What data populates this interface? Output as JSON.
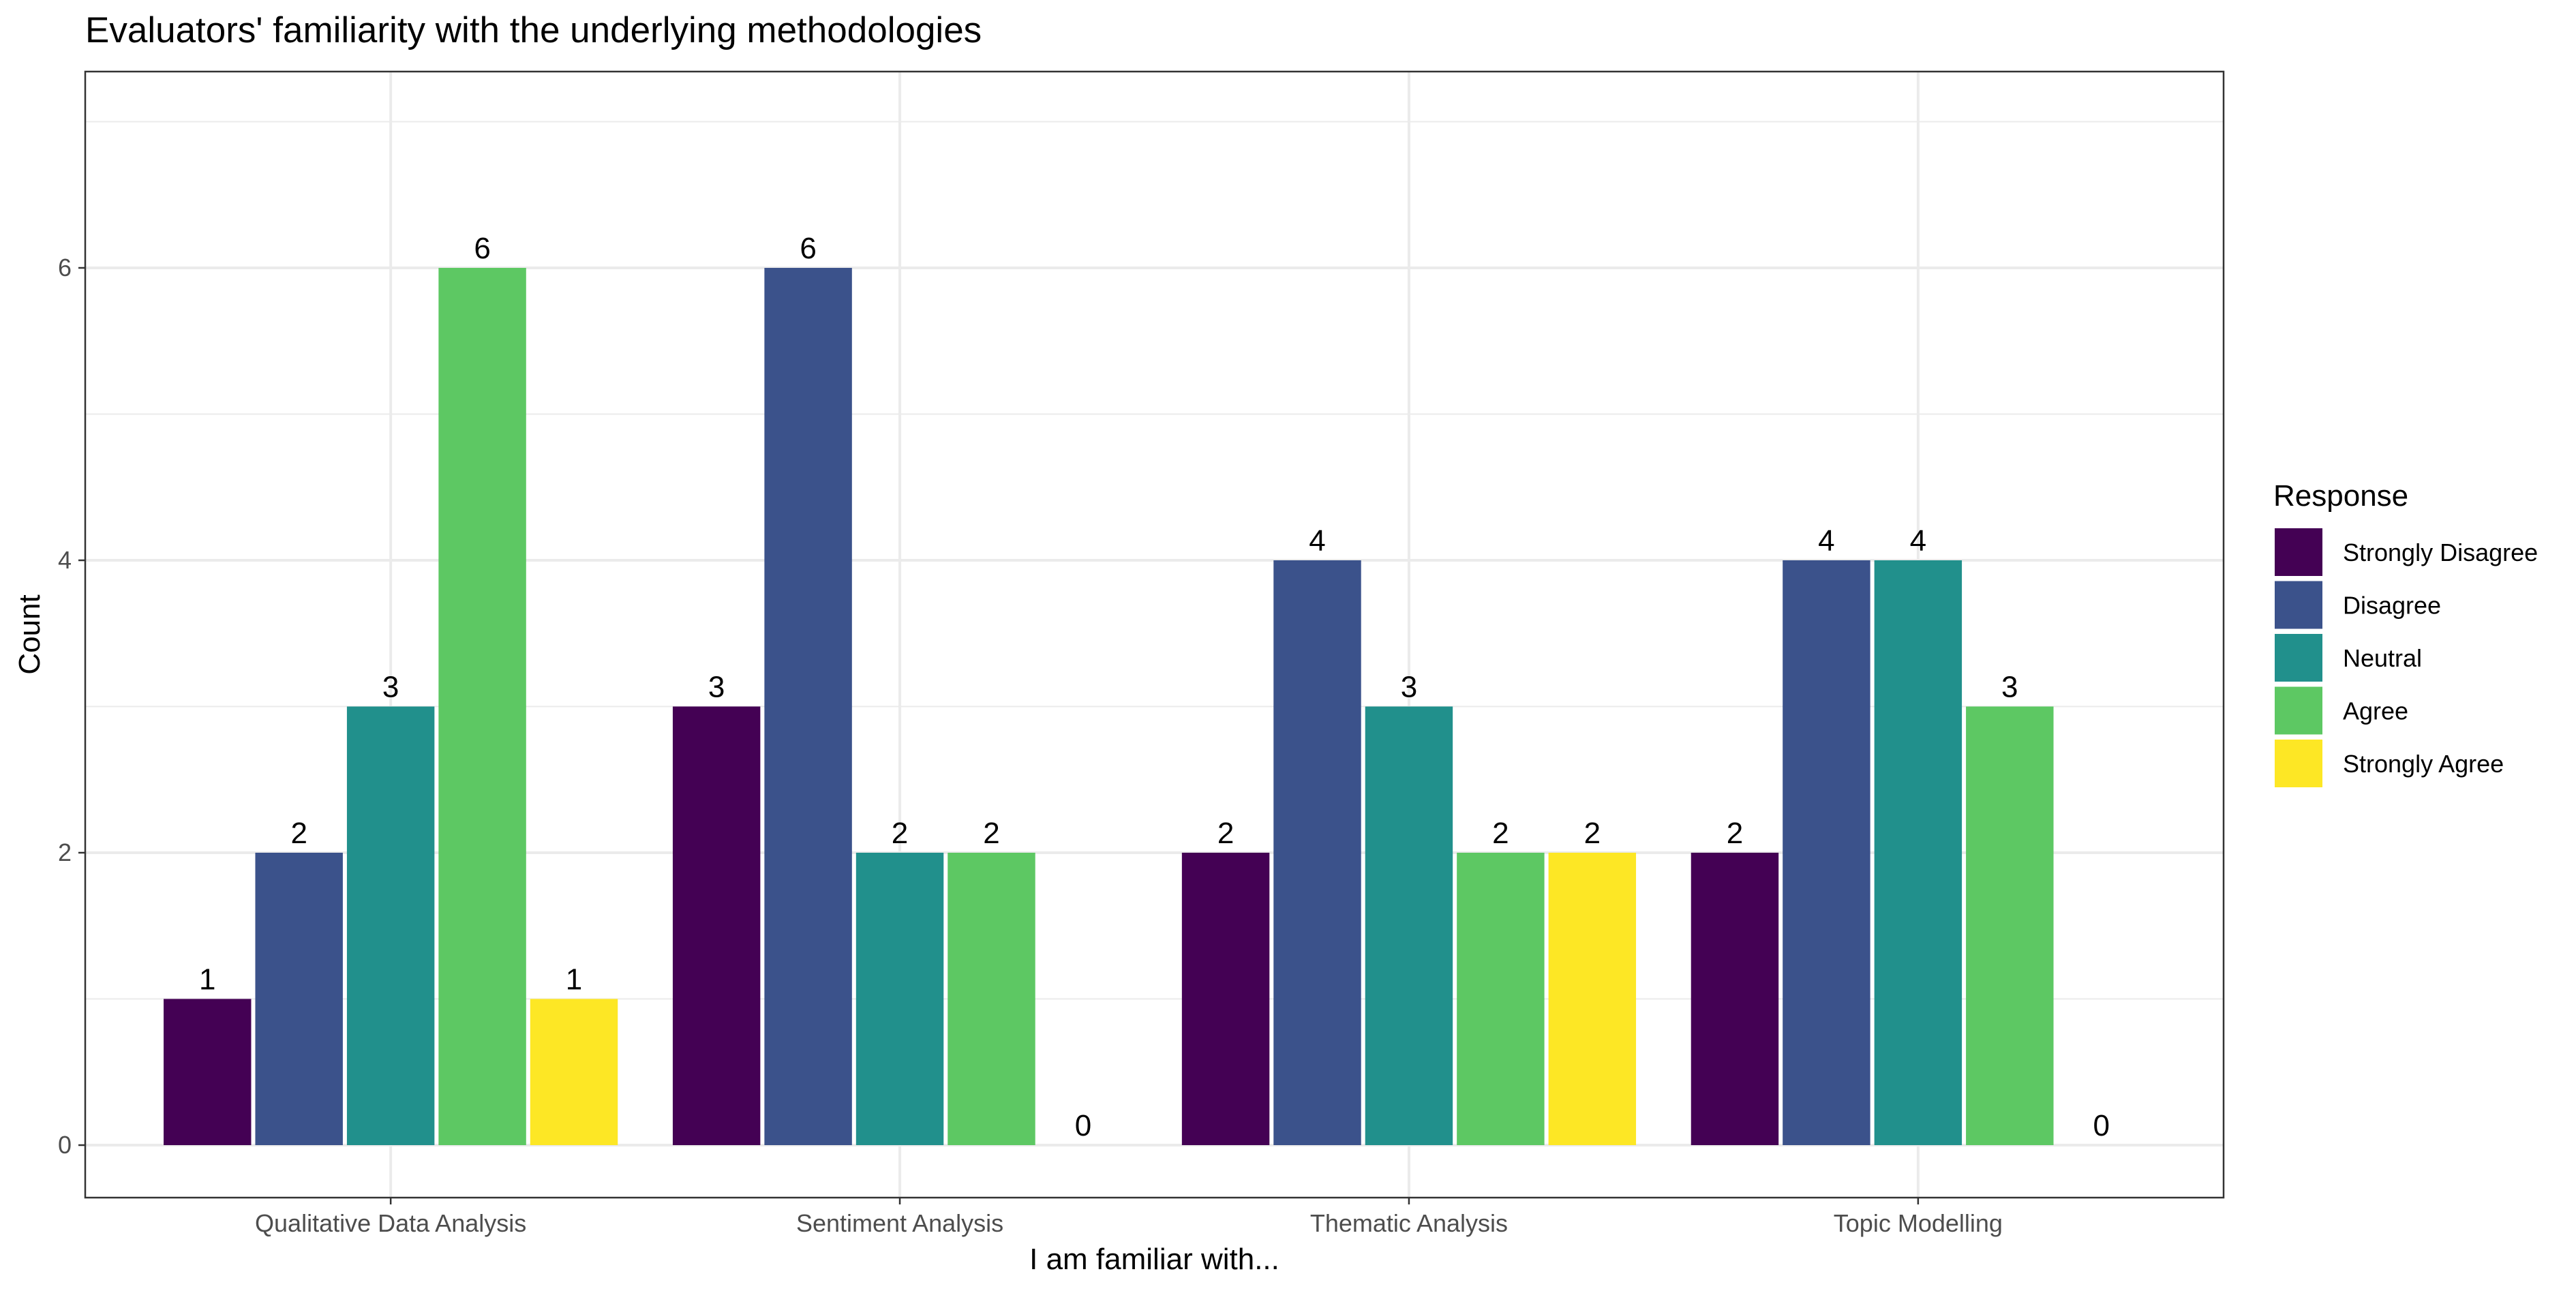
{
  "chart_data": {
    "type": "bar",
    "title": "Evaluators' familiarity with the underlying methodologies",
    "xlabel": "I am familiar with...",
    "ylabel": "Count",
    "ylim": [
      0,
      7.2
    ],
    "yticks": [
      0,
      2,
      4,
      6
    ],
    "grid": true,
    "legend": {
      "title": "Response",
      "position": "right"
    },
    "categories": [
      "Qualitative Data Analysis",
      "Sentiment Analysis",
      "Thematic Analysis",
      "Topic Modelling"
    ],
    "series": [
      {
        "name": "Strongly Disagree",
        "color": "#440154",
        "values": [
          1,
          3,
          2,
          2
        ]
      },
      {
        "name": "Disagree",
        "color": "#3B528B",
        "values": [
          2,
          6,
          4,
          4
        ]
      },
      {
        "name": "Neutral",
        "color": "#21908C",
        "values": [
          3,
          2,
          3,
          4
        ]
      },
      {
        "name": "Agree",
        "color": "#5DC863",
        "values": [
          6,
          2,
          2,
          3
        ]
      },
      {
        "name": "Strongly Agree",
        "color": "#FDE725",
        "values": [
          1,
          0,
          2,
          0
        ]
      }
    ]
  }
}
